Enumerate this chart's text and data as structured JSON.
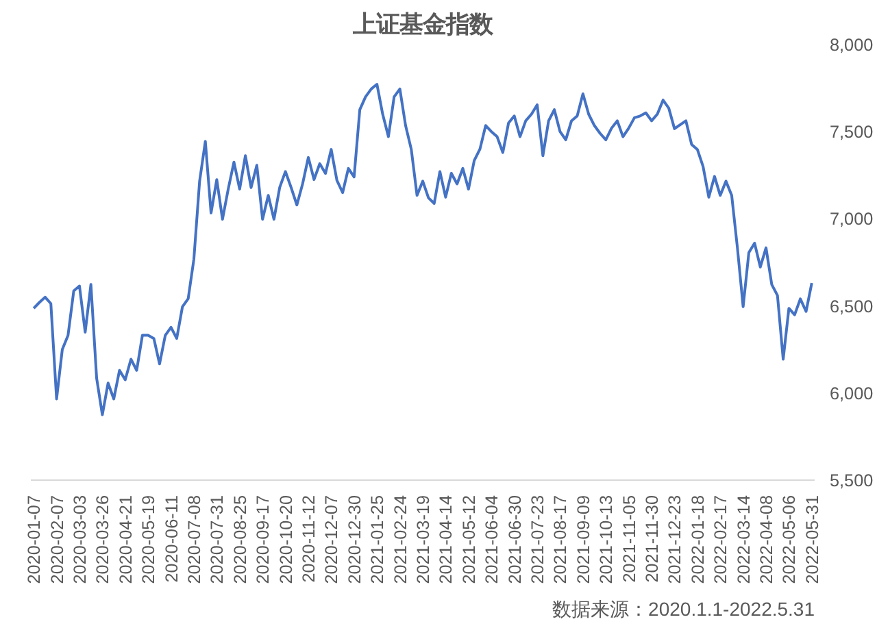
{
  "chart_data": {
    "type": "line",
    "title": "上证基金指数",
    "categories": [
      "2020-01-07",
      null,
      null,
      null,
      "2020-02-07",
      null,
      null,
      null,
      "2020-03-03",
      null,
      null,
      null,
      "2020-03-26",
      null,
      null,
      null,
      "2020-04-21",
      null,
      null,
      null,
      "2020-05-19",
      null,
      null,
      null,
      "2020-06-11",
      null,
      null,
      null,
      "2020-07-08",
      null,
      null,
      null,
      "2020-07-31",
      null,
      null,
      null,
      "2020-08-25",
      null,
      null,
      null,
      "2020-09-17",
      null,
      null,
      null,
      "2020-10-20",
      null,
      null,
      null,
      "2020-11-12",
      null,
      null,
      null,
      "2020-12-07",
      null,
      null,
      null,
      "2020-12-30",
      null,
      null,
      null,
      "2021-01-25",
      null,
      null,
      null,
      "2021-02-24",
      null,
      null,
      null,
      "2021-03-19",
      null,
      null,
      null,
      "2021-04-14",
      null,
      null,
      null,
      "2021-05-12",
      null,
      null,
      null,
      "2021-06-04",
      null,
      null,
      null,
      "2021-06-30",
      null,
      null,
      null,
      "2021-07-23",
      null,
      null,
      null,
      "2021-08-17",
      null,
      null,
      null,
      "2021-09-09",
      null,
      null,
      null,
      "2021-10-13",
      null,
      null,
      null,
      "2021-11-05",
      null,
      null,
      null,
      "2021-11-30",
      null,
      null,
      null,
      "2021-12-23",
      null,
      null,
      null,
      "2022-01-18",
      null,
      null,
      null,
      "2022-02-17",
      null,
      null,
      null,
      "2022-03-14",
      null,
      null,
      null,
      "2022-04-08",
      null,
      null,
      null,
      "2022-05-06",
      null,
      null,
      null,
      "2022-05-31"
    ],
    "series": [
      {
        "color": "#4472c4",
        "values": [
          6486,
          6520,
          6550,
          6513,
          5966,
          6250,
          6330,
          6586,
          6614,
          6349,
          6623,
          6085,
          5875,
          6057,
          5966,
          6130,
          6076,
          6194,
          6130,
          6331,
          6331,
          6313,
          6167,
          6331,
          6377,
          6313,
          6495,
          6541,
          6769,
          7216,
          7444,
          7033,
          7225,
          6997,
          7170,
          7325,
          7170,
          7362,
          7179,
          7307,
          6997,
          7134,
          6997,
          7180,
          7271,
          7179,
          7079,
          7200,
          7352,
          7225,
          7316,
          7260,
          7398,
          7220,
          7150,
          7289,
          7240,
          7626,
          7700,
          7745,
          7772,
          7600,
          7471,
          7700,
          7745,
          7535,
          7398,
          7134,
          7216,
          7120,
          7088,
          7271,
          7124,
          7261,
          7200,
          7289,
          7170,
          7334,
          7400,
          7535,
          7500,
          7471,
          7380,
          7550,
          7590,
          7471,
          7562,
          7600,
          7654,
          7362,
          7562,
          7626,
          7500,
          7453,
          7562,
          7590,
          7717,
          7600,
          7535,
          7490,
          7453,
          7520,
          7562,
          7471,
          7520,
          7580,
          7590,
          7608,
          7562,
          7600,
          7681,
          7635,
          7517,
          7540,
          7562,
          7426,
          7398,
          7300,
          7124,
          7243,
          7134,
          7216,
          7134,
          6833,
          6495,
          6806,
          6860,
          6723,
          6833,
          6623,
          6560,
          6194,
          6486,
          6449,
          6540,
          6468,
          6632
        ]
      }
    ],
    "ylim": [
      5500,
      8000
    ],
    "yticks": [
      {
        "value": 5500,
        "label": "5,500"
      },
      {
        "value": 6000,
        "label": "6,000"
      },
      {
        "value": 6500,
        "label": "6,500"
      },
      {
        "value": 7000,
        "label": "7,000"
      },
      {
        "value": 7500,
        "label": "7,500"
      },
      {
        "value": 8000,
        "label": "8,000"
      }
    ],
    "annotations": [
      "数据来源：2020.1.1-2022.5.31"
    ],
    "grid": false,
    "marker": "none",
    "line_style": "solid"
  }
}
